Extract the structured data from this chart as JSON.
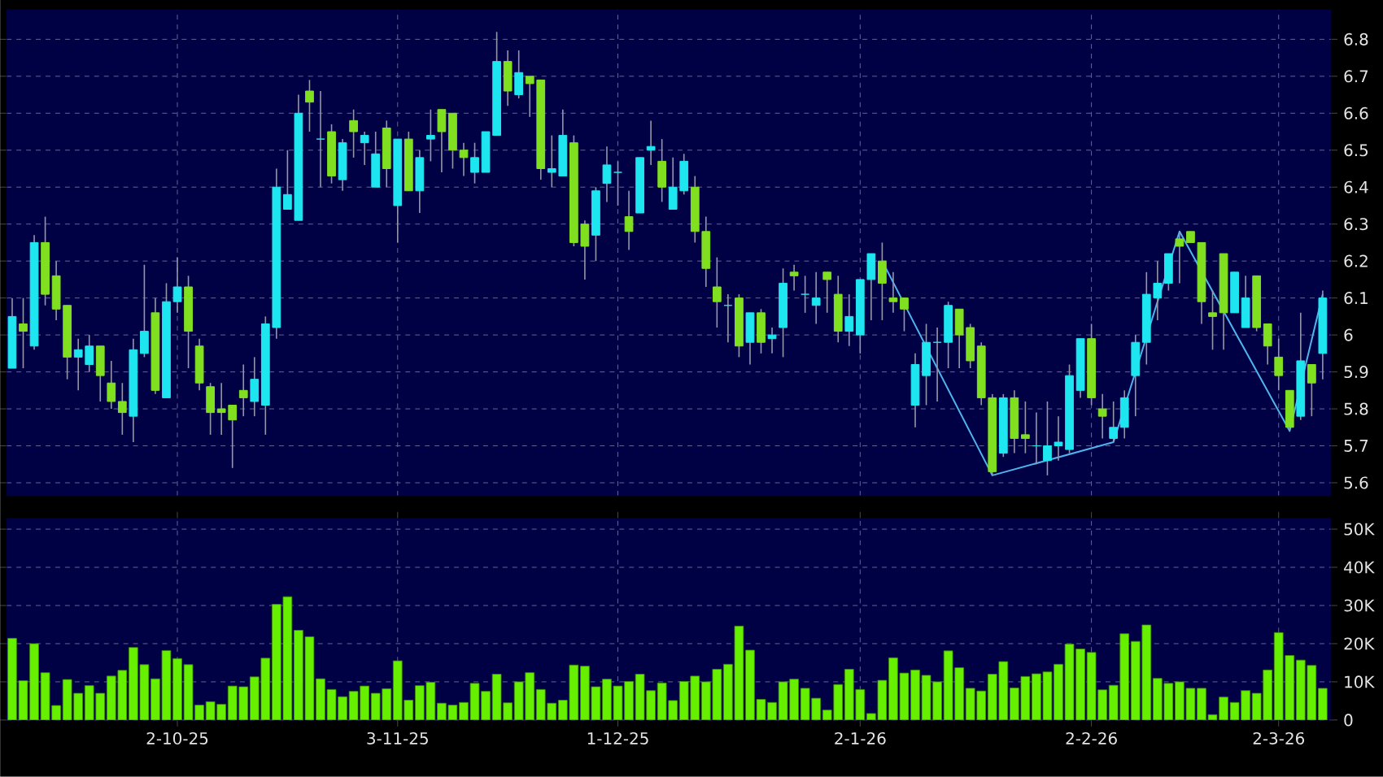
{
  "chart_data": [
    {
      "type": "candlestick",
      "categories": [
        null,
        null,
        null,
        null,
        null,
        null,
        null,
        null,
        null,
        null,
        null,
        null,
        null,
        null,
        null,
        null,
        null,
        null,
        null,
        null,
        null,
        null,
        null,
        null,
        null,
        null,
        null,
        null,
        null,
        null,
        null,
        null,
        null,
        null,
        null,
        null,
        null,
        null,
        null,
        null,
        null,
        null,
        null,
        null,
        null,
        null,
        null,
        null,
        null,
        null,
        null,
        null,
        null,
        null,
        null,
        null,
        null,
        null,
        null,
        null,
        null,
        null,
        null,
        null,
        null,
        null,
        null,
        null,
        null,
        null,
        null,
        null,
        null,
        null,
        null,
        null,
        null,
        null,
        null,
        null,
        null,
        null,
        null,
        null,
        null,
        null,
        null,
        null,
        null,
        null,
        null,
        null,
        null,
        null,
        null,
        null,
        null,
        null,
        null,
        null,
        null,
        null,
        null,
        null,
        null,
        null,
        null,
        null,
        null,
        null,
        null,
        null,
        null,
        null,
        null,
        null,
        null,
        null,
        null,
        null
      ],
      "ohlc": [
        [
          5.91,
          6.1,
          5.91,
          6.05
        ],
        [
          6.03,
          6.1,
          5.91,
          6.01
        ],
        [
          5.97,
          6.27,
          5.96,
          6.25
        ],
        [
          6.25,
          6.32,
          6.08,
          6.11
        ],
        [
          6.16,
          6.2,
          6.04,
          6.07
        ],
        [
          6.08,
          6.08,
          5.88,
          5.94
        ],
        [
          5.94,
          5.99,
          5.85,
          5.96
        ],
        [
          5.92,
          6.0,
          5.9,
          5.97
        ],
        [
          5.97,
          5.97,
          5.82,
          5.89
        ],
        [
          5.87,
          5.93,
          5.8,
          5.82
        ],
        [
          5.82,
          5.87,
          5.73,
          5.79
        ],
        [
          5.78,
          5.99,
          5.71,
          5.96
        ],
        [
          5.95,
          6.19,
          5.94,
          6.01
        ],
        [
          6.06,
          6.1,
          5.84,
          5.85
        ],
        [
          5.83,
          6.14,
          5.83,
          6.09
        ],
        [
          6.09,
          6.21,
          6.06,
          6.13
        ],
        [
          6.13,
          6.16,
          5.91,
          6.01
        ],
        [
          5.97,
          5.99,
          5.85,
          5.87
        ],
        [
          5.86,
          5.87,
          5.73,
          5.79
        ],
        [
          5.8,
          5.87,
          5.73,
          5.79
        ],
        [
          5.81,
          5.81,
          5.64,
          5.77
        ],
        [
          5.85,
          5.92,
          5.78,
          5.83
        ],
        [
          5.82,
          5.94,
          5.78,
          5.88
        ],
        [
          5.81,
          6.05,
          5.73,
          6.03
        ],
        [
          6.02,
          6.45,
          5.99,
          6.4
        ],
        [
          6.34,
          6.5,
          6.34,
          6.38
        ],
        [
          6.31,
          6.65,
          6.31,
          6.6
        ],
        [
          6.66,
          6.69,
          6.55,
          6.63
        ],
        [
          6.53,
          6.66,
          6.4,
          6.53
        ],
        [
          6.55,
          6.57,
          6.41,
          6.43
        ],
        [
          6.42,
          6.53,
          6.39,
          6.52
        ],
        [
          6.58,
          6.61,
          6.48,
          6.55
        ],
        [
          6.52,
          6.55,
          6.46,
          6.54
        ],
        [
          6.4,
          6.55,
          6.4,
          6.49
        ],
        [
          6.56,
          6.58,
          6.4,
          6.45
        ],
        [
          6.35,
          6.53,
          6.25,
          6.53
        ],
        [
          6.53,
          6.55,
          6.39,
          6.39
        ],
        [
          6.39,
          6.5,
          6.33,
          6.48
        ],
        [
          6.53,
          6.61,
          6.47,
          6.54
        ],
        [
          6.61,
          6.61,
          6.44,
          6.55
        ],
        [
          6.6,
          6.6,
          6.45,
          6.5
        ],
        [
          6.5,
          6.52,
          6.43,
          6.48
        ],
        [
          6.44,
          6.52,
          6.41,
          6.48
        ],
        [
          6.44,
          6.55,
          6.44,
          6.55
        ],
        [
          6.54,
          6.82,
          6.54,
          6.74
        ],
        [
          6.74,
          6.77,
          6.62,
          6.66
        ],
        [
          6.65,
          6.77,
          6.64,
          6.71
        ],
        [
          6.7,
          6.7,
          6.59,
          6.68
        ],
        [
          6.69,
          6.69,
          6.42,
          6.45
        ],
        [
          6.44,
          6.54,
          6.4,
          6.45
        ],
        [
          6.43,
          6.61,
          6.43,
          6.54
        ],
        [
          6.52,
          6.54,
          6.24,
          6.25
        ],
        [
          6.3,
          6.31,
          6.15,
          6.24
        ],
        [
          6.27,
          6.4,
          6.2,
          6.39
        ],
        [
          6.41,
          6.51,
          6.36,
          6.46
        ],
        [
          6.44,
          6.47,
          6.35,
          6.44
        ],
        [
          6.32,
          6.39,
          6.23,
          6.28
        ],
        [
          6.33,
          6.48,
          6.33,
          6.48
        ],
        [
          6.5,
          6.58,
          6.46,
          6.51
        ],
        [
          6.47,
          6.53,
          6.36,
          6.4
        ],
        [
          6.34,
          6.48,
          6.34,
          6.4
        ],
        [
          6.39,
          6.49,
          6.38,
          6.47
        ],
        [
          6.4,
          6.43,
          6.25,
          6.28
        ],
        [
          6.28,
          6.32,
          6.13,
          6.18
        ],
        [
          6.13,
          6.21,
          6.02,
          6.09
        ],
        [
          6.08,
          6.11,
          5.98,
          6.08
        ],
        [
          6.1,
          6.11,
          5.94,
          5.97
        ],
        [
          5.98,
          6.06,
          5.92,
          6.06
        ],
        [
          6.06,
          6.07,
          5.95,
          5.98
        ],
        [
          5.99,
          6.02,
          5.95,
          6.0
        ],
        [
          6.02,
          6.18,
          5.94,
          6.14
        ],
        [
          6.17,
          6.19,
          6.12,
          6.16
        ],
        [
          6.11,
          6.16,
          6.06,
          6.11
        ],
        [
          6.08,
          6.17,
          6.03,
          6.1
        ],
        [
          6.17,
          6.17,
          6.06,
          6.15
        ],
        [
          6.11,
          6.16,
          5.98,
          6.01
        ],
        [
          6.01,
          6.11,
          5.97,
          6.05
        ],
        [
          6.0,
          6.15,
          5.95,
          6.15
        ],
        [
          6.15,
          6.22,
          6.04,
          6.22
        ],
        [
          6.2,
          6.25,
          6.04,
          6.14
        ],
        [
          6.1,
          6.17,
          6.06,
          6.09
        ],
        [
          6.1,
          6.1,
          6.01,
          6.07
        ],
        [
          5.81,
          5.95,
          5.75,
          5.92
        ],
        [
          5.89,
          6.03,
          5.81,
          5.98
        ],
        [
          5.98,
          6.02,
          5.82,
          5.98
        ],
        [
          5.98,
          6.09,
          5.91,
          6.08
        ],
        [
          6.07,
          6.07,
          5.91,
          6.0
        ],
        [
          6.02,
          6.03,
          5.91,
          5.93
        ],
        [
          5.97,
          5.98,
          5.81,
          5.83
        ],
        [
          5.83,
          5.84,
          5.62,
          5.63
        ],
        [
          5.68,
          5.84,
          5.67,
          5.83
        ],
        [
          5.83,
          5.85,
          5.68,
          5.72
        ],
        [
          5.73,
          5.82,
          5.68,
          5.72
        ],
        [
          5.7,
          5.79,
          5.65,
          5.7
        ],
        [
          5.66,
          5.82,
          5.62,
          5.7
        ],
        [
          5.7,
          5.78,
          5.66,
          5.71
        ],
        [
          5.69,
          5.92,
          5.68,
          5.89
        ],
        [
          5.85,
          5.99,
          5.83,
          5.99
        ],
        [
          5.99,
          6.03,
          5.81,
          5.83
        ],
        [
          5.8,
          5.84,
          5.72,
          5.78
        ],
        [
          5.72,
          5.82,
          5.71,
          5.75
        ],
        [
          5.75,
          5.85,
          5.72,
          5.83
        ],
        [
          5.89,
          6.0,
          5.78,
          5.98
        ],
        [
          5.98,
          6.17,
          5.92,
          6.11
        ],
        [
          6.1,
          6.2,
          6.04,
          6.14
        ],
        [
          6.14,
          6.22,
          6.12,
          6.22
        ],
        [
          6.26,
          6.28,
          6.14,
          6.24
        ],
        [
          6.28,
          6.28,
          6.25,
          6.25
        ],
        [
          6.25,
          6.25,
          6.03,
          6.09
        ],
        [
          6.06,
          6.12,
          5.96,
          6.05
        ],
        [
          6.22,
          6.22,
          5.96,
          6.06
        ],
        [
          6.06,
          6.17,
          6.06,
          6.17
        ],
        [
          6.02,
          6.16,
          6.02,
          6.1
        ],
        [
          6.16,
          6.16,
          6.01,
          6.02
        ],
        [
          6.03,
          6.03,
          5.92,
          5.97
        ],
        [
          5.94,
          5.99,
          5.85,
          5.89
        ],
        [
          5.85,
          5.85,
          5.74,
          5.75
        ],
        [
          5.78,
          6.06,
          5.77,
          5.93
        ],
        [
          5.92,
          5.92,
          5.78,
          5.87
        ],
        [
          5.95,
          6.12,
          5.88,
          6.1
        ]
      ],
      "colors": [
        "#1ee6f0",
        "#80e020",
        "#1ee6f0",
        "#80e020",
        "#80e020",
        "#80e020",
        "#1ee6f0",
        "#1ee6f0",
        "#80e020",
        "#80e020",
        "#80e020",
        "#1ee6f0",
        "#1ee6f0",
        "#80e020",
        "#1ee6f0",
        "#1ee6f0",
        "#80e020",
        "#80e020",
        "#80e020",
        "#80e020",
        "#80e020",
        "#80e020",
        "#1ee6f0",
        "#1ee6f0",
        "#1ee6f0",
        "#1ee6f0",
        "#1ee6f0",
        "#80e020",
        "#1ee6f0",
        "#80e020",
        "#1ee6f0",
        "#80e020",
        "#1ee6f0",
        "#1ee6f0",
        "#80e020",
        "#1ee6f0",
        "#80e020",
        "#1ee6f0",
        "#1ee6f0",
        "#80e020",
        "#80e020",
        "#80e020",
        "#1ee6f0",
        "#1ee6f0",
        "#1ee6f0",
        "#80e020",
        "#1ee6f0",
        "#80e020",
        "#80e020",
        "#1ee6f0",
        "#1ee6f0",
        "#80e020",
        "#80e020",
        "#1ee6f0",
        "#1ee6f0",
        "#1ee6f0",
        "#80e020",
        "#1ee6f0",
        "#1ee6f0",
        "#80e020",
        "#1ee6f0",
        "#1ee6f0",
        "#80e020",
        "#80e020",
        "#80e020",
        "#1ee6f0",
        "#80e020",
        "#1ee6f0",
        "#80e020",
        "#1ee6f0",
        "#1ee6f0",
        "#80e020",
        "#1ee6f0",
        "#1ee6f0",
        "#80e020",
        "#80e020",
        "#1ee6f0",
        "#1ee6f0",
        "#1ee6f0",
        "#80e020",
        "#80e020",
        "#80e020",
        "#1ee6f0",
        "#1ee6f0",
        "#1ee6f0",
        "#1ee6f0",
        "#80e020",
        "#80e020",
        "#80e020",
        "#80e020",
        "#1ee6f0",
        "#80e020",
        "#80e020",
        "#1ee6f0",
        "#1ee6f0",
        "#1ee6f0",
        "#1ee6f0",
        "#1ee6f0",
        "#80e020",
        "#80e020",
        "#1ee6f0",
        "#1ee6f0",
        "#1ee6f0",
        "#1ee6f0",
        "#1ee6f0",
        "#1ee6f0",
        "#80e020",
        "#80e020",
        "#80e020",
        "#80e020",
        "#80e020",
        "#1ee6f0",
        "#1ee6f0",
        "#80e020",
        "#80e020",
        "#80e020",
        "#80e020",
        "#1ee6f0",
        "#80e020",
        "#1ee6f0"
      ],
      "series": [
        {
          "type": "line",
          "color": "#4fb4ee",
          "values": [
            null,
            null,
            null,
            null,
            null,
            null,
            null,
            null,
            null,
            null,
            null,
            null,
            null,
            null,
            null,
            null,
            null,
            null,
            null,
            null,
            null,
            null,
            null,
            null,
            null,
            null,
            null,
            null,
            null,
            null,
            null,
            null,
            null,
            null,
            null,
            null,
            null,
            null,
            null,
            null,
            null,
            null,
            null,
            null,
            null,
            null,
            null,
            null,
            null,
            null,
            null,
            null,
            null,
            null,
            null,
            null,
            null,
            null,
            null,
            null,
            null,
            null,
            null,
            null,
            null,
            null,
            null,
            null,
            null,
            null,
            null,
            null,
            null,
            null,
            null,
            null,
            null,
            null,
            null,
            6.2,
            null,
            null,
            null,
            null,
            null,
            null,
            null,
            null,
            null,
            5.62,
            null,
            null,
            null,
            null,
            null,
            null,
            null,
            null,
            null,
            null,
            5.71,
            null,
            null,
            null,
            null,
            null,
            6.28,
            null,
            null,
            null,
            null,
            null,
            null,
            null,
            null,
            null,
            5.74,
            null,
            null,
            6.11
          ]
        }
      ],
      "ylim": [
        5.565,
        6.88
      ],
      "yticks": [
        5.6,
        5.7,
        5.8,
        5.9,
        6,
        6.1,
        6.2,
        6.3,
        6.4,
        6.5,
        6.6,
        6.7,
        6.8
      ],
      "grid": true,
      "tick_labels": "y"
    },
    {
      "type": "bar",
      "categories": [
        null,
        null,
        null,
        null,
        null,
        null,
        null,
        null,
        null,
        null,
        null,
        null,
        null,
        null,
        null,
        "2-10-25",
        null,
        null,
        null,
        null,
        null,
        null,
        null,
        null,
        null,
        null,
        null,
        null,
        null,
        null,
        null,
        null,
        null,
        null,
        null,
        "3-11-25",
        null,
        null,
        null,
        null,
        null,
        null,
        null,
        null,
        null,
        null,
        null,
        null,
        null,
        null,
        null,
        null,
        null,
        null,
        null,
        "1-12-25",
        null,
        null,
        null,
        null,
        null,
        null,
        null,
        null,
        null,
        null,
        null,
        null,
        null,
        null,
        null,
        null,
        null,
        null,
        null,
        null,
        null,
        "2-1-26",
        null,
        null,
        null,
        null,
        null,
        null,
        null,
        null,
        null,
        null,
        null,
        null,
        null,
        null,
        null,
        null,
        null,
        null,
        null,
        null,
        "2-2-26",
        null,
        null,
        null,
        null,
        null,
        null,
        null,
        null,
        null,
        null,
        null,
        null,
        null,
        null,
        null,
        null,
        "2-3-26",
        null,
        null,
        null,
        null
      ],
      "values": [
        21400,
        10300,
        20000,
        12400,
        3800,
        10600,
        7000,
        9000,
        7000,
        11500,
        13000,
        19000,
        14500,
        10800,
        18200,
        16100,
        14500,
        3900,
        4800,
        4100,
        8900,
        8700,
        11300,
        16200,
        30300,
        32300,
        23500,
        21800,
        10800,
        8000,
        6100,
        7500,
        8900,
        7000,
        8200,
        15500,
        5200,
        9000,
        9900,
        4400,
        3900,
        4600,
        9600,
        7500,
        12000,
        4500,
        10000,
        12400,
        8000,
        4400,
        5200,
        14400,
        14100,
        8700,
        10700,
        8900,
        10100,
        12000,
        7700,
        9700,
        5100,
        10100,
        11500,
        10000,
        13300,
        14600,
        24600,
        18300,
        5400,
        4600,
        10000,
        10700,
        8300,
        5700,
        2600,
        9300,
        13300,
        8000,
        1700,
        10400,
        16300,
        12300,
        13100,
        11700,
        10000,
        18100,
        13700,
        8300,
        7600,
        12000,
        15300,
        8400,
        11400,
        12100,
        12600,
        14600,
        19900,
        18600,
        17700,
        7900,
        9100,
        22600,
        20600,
        24900,
        10900,
        9600,
        10000,
        8300,
        8300,
        1400,
        6000,
        4600,
        7700,
        7000,
        13100,
        22900,
        16900,
        15700,
        14300,
        8300
      ],
      "color": "#66f000",
      "ylim": [
        0,
        52800
      ],
      "yticks": [
        0,
        {
          "value": 10000,
          "label": "10K"
        },
        {
          "value": 20000,
          "label": "20K"
        },
        {
          "value": 30000,
          "label": "30K"
        },
        {
          "value": 40000,
          "label": "40K"
        },
        {
          "value": 50000,
          "label": "50K"
        }
      ],
      "grid": true
    }
  ]
}
